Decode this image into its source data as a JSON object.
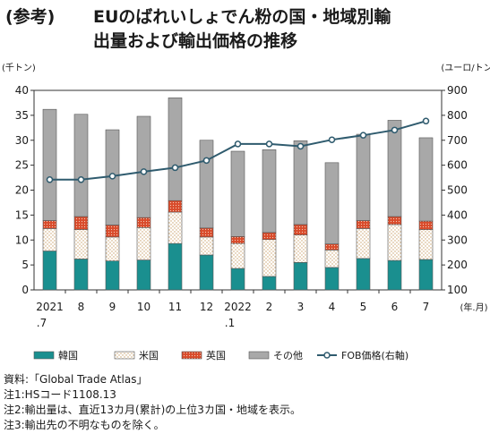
{
  "title": {
    "prefix": "(参考)",
    "line1": "EUのばれいしょでん粉の国・地域別輸",
    "line2": "出量および輸出価格の推移"
  },
  "chart_data": {
    "type": "bar",
    "stacked": true,
    "categories": [
      "2021\n.7",
      "8",
      "9",
      "10",
      "11",
      "12",
      "2022\n.1",
      "2",
      "3",
      "4",
      "5",
      "6",
      "7"
    ],
    "x_unit": "(年.月)",
    "y_left_unit": "(千トン)",
    "y_right_unit": "(ユーロ/トン)",
    "ylim_left": [
      0,
      40
    ],
    "ylim_right": [
      100,
      900
    ],
    "yticks_left": [
      0,
      5,
      10,
      15,
      20,
      25,
      30,
      35,
      40
    ],
    "yticks_right": [
      100,
      200,
      300,
      400,
      500,
      600,
      700,
      800,
      900
    ],
    "series": [
      {
        "name": "韓国",
        "color": "#1a8f8f",
        "pattern": "solid",
        "values": [
          7.8,
          6.2,
          5.8,
          6.0,
          9.3,
          7.0,
          4.3,
          2.7,
          5.5,
          4.5,
          6.3,
          5.9,
          6.1
        ]
      },
      {
        "name": "米国",
        "color": "#ffffff",
        "pattern": "dots-tan",
        "values": [
          4.5,
          5.9,
          4.8,
          6.5,
          6.3,
          3.6,
          5.0,
          7.4,
          5.5,
          3.5,
          6.0,
          7.2,
          6.0
        ]
      },
      {
        "name": "英国",
        "color": "#d94b2b",
        "pattern": "dots-red",
        "values": [
          1.6,
          2.6,
          2.4,
          2.0,
          2.3,
          1.8,
          1.4,
          1.4,
          2.1,
          1.2,
          1.6,
          1.6,
          1.7
        ]
      },
      {
        "name": "その他",
        "color": "#a8a8a8",
        "pattern": "solid",
        "values": [
          22.3,
          20.5,
          19.1,
          20.3,
          20.6,
          17.6,
          17.1,
          16.6,
          16.8,
          16.3,
          17.3,
          19.3,
          16.7
        ]
      },
      {
        "name": "FOB価格(右軸)",
        "type": "line",
        "axis": "right",
        "color": "#2f5b6e",
        "values": [
          542,
          542,
          556,
          574,
          590,
          619,
          685,
          685,
          676,
          702,
          720,
          741,
          777
        ]
      }
    ]
  },
  "notes": [
    "資料:「Global Trade Atlas」",
    "注1:HSコード1108.13",
    "注2:輸出量は、直近13カ月(累計)の上位3カ国・地域を表示。",
    "注3:輸出先の不明なものを除く。"
  ]
}
